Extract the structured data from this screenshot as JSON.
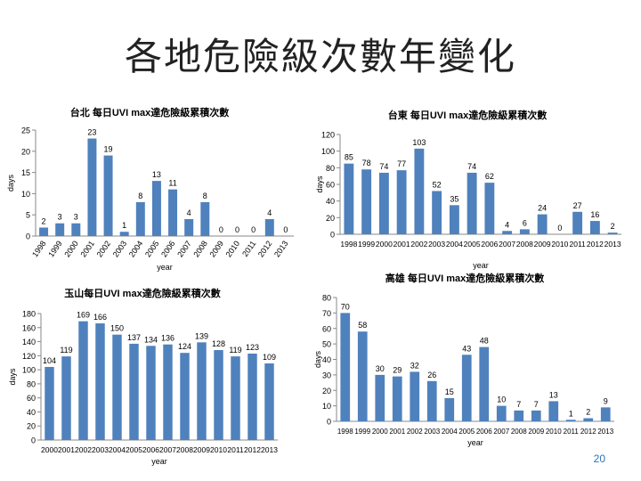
{
  "slide": {
    "title": "各地危險級次數年變化",
    "page_number": "20"
  },
  "chart_data": [
    {
      "id": "taipei",
      "type": "bar",
      "title": "台北 每日UVI max達危險級累積次數",
      "xlabel": "year",
      "ylabel": "days",
      "ylim": [
        0,
        25
      ],
      "yticks": [
        0,
        5,
        10,
        15,
        20,
        25
      ],
      "categories": [
        "1998",
        "1999",
        "2000",
        "2001",
        "2002",
        "2003",
        "2004",
        "2005",
        "2006",
        "2007",
        "2008",
        "2009",
        "2010",
        "2011",
        "2012",
        "2013"
      ],
      "values": [
        2,
        3,
        3,
        23,
        19,
        1,
        8,
        13,
        11,
        4,
        8,
        0,
        0,
        0,
        4,
        0
      ],
      "color": "#4f81bd"
    },
    {
      "id": "taitung",
      "type": "bar",
      "title": "台東 每日UVI max達危險級累積次數",
      "xlabel": "year",
      "ylabel": "days",
      "ylim": [
        0,
        120
      ],
      "yticks": [
        0,
        20,
        40,
        60,
        80,
        100,
        120
      ],
      "categories": [
        "1998",
        "1999",
        "2000",
        "2001",
        "2002",
        "2003",
        "2004",
        "2005",
        "2006",
        "2007",
        "2008",
        "2009",
        "2010",
        "2011",
        "2012",
        "2013"
      ],
      "values": [
        85,
        78,
        74,
        77,
        103,
        52,
        35,
        74,
        62,
        4,
        6,
        24,
        0,
        27,
        16,
        2
      ],
      "color": "#4f81bd"
    },
    {
      "id": "yushan",
      "type": "bar",
      "title": "玉山每日UVI max達危險級累積次數",
      "xlabel": "year",
      "ylabel": "days",
      "ylim": [
        0,
        180
      ],
      "yticks": [
        0,
        20,
        40,
        60,
        80,
        100,
        120,
        140,
        160,
        180
      ],
      "categories": [
        "2000",
        "2001",
        "2002",
        "2003",
        "2004",
        "2005",
        "2006",
        "2007",
        "2008",
        "2009",
        "2010",
        "2011",
        "2012",
        "2013"
      ],
      "values": [
        104,
        119,
        169,
        166,
        150,
        137,
        134,
        136,
        124,
        139,
        128,
        119,
        123,
        109
      ],
      "color": "#4f81bd"
    },
    {
      "id": "kaohsiung",
      "type": "bar",
      "title": "高雄 每日UVI max達危險級累積次數",
      "xlabel": "year",
      "ylabel": "days",
      "ylim": [
        0,
        80
      ],
      "yticks": [
        0,
        10,
        20,
        30,
        40,
        50,
        60,
        70,
        80
      ],
      "categories": [
        "1998",
        "1999",
        "2000",
        "2001",
        "2002",
        "2003",
        "2004",
        "2005",
        "2006",
        "2007",
        "2008",
        "2009",
        "2010",
        "2011",
        "2012",
        "2013"
      ],
      "values": [
        70,
        58,
        30,
        29,
        32,
        26,
        15,
        43,
        48,
        10,
        7,
        7,
        13,
        1,
        2,
        9
      ],
      "color": "#4f81bd"
    }
  ]
}
